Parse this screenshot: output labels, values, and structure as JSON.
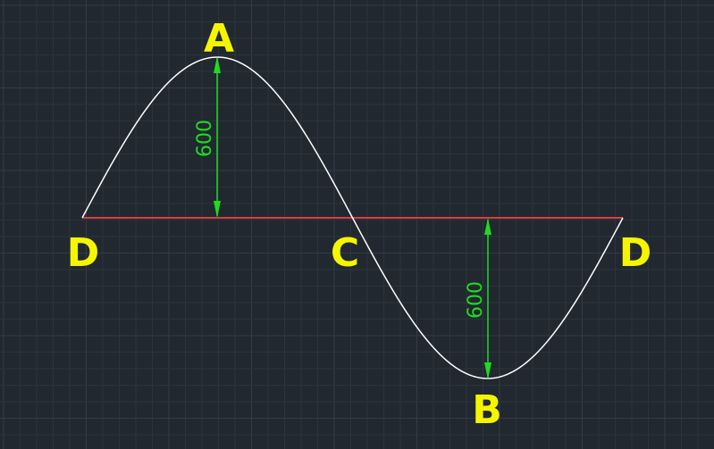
{
  "drawing": {
    "colors": {
      "background": "#212830",
      "curve": "#ffffff",
      "baseline": "#e03c3c",
      "dimension": "#1edc1e",
      "point_label": "#f5f500"
    },
    "points": {
      "peak": "A",
      "trough": "B",
      "mid_crossing": "C",
      "left_end": "D",
      "right_end": "D"
    },
    "dimensions": {
      "peak_height": "600",
      "trough_depth": "600"
    }
  }
}
